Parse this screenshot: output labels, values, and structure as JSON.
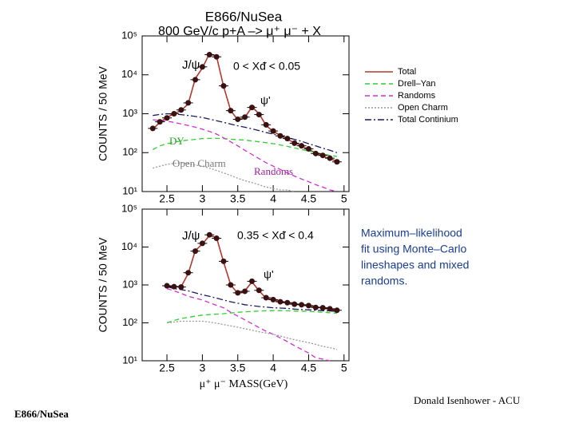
{
  "slide": {
    "author": "Donald Isenhower - ACU",
    "footer": "E866/NuSea",
    "note": [
      "Maximum–likelihood",
      "fit using Monte–Carlo",
      " lineshapes and mixed",
      "randoms."
    ]
  },
  "chart_data": [
    {
      "type": "line",
      "title": "E866/NuSea",
      "subtitle": "800 GeV/c p+A –> μ⁺ μ⁻ + X",
      "y_label": "COUNTS / 50 MeV",
      "log_y": true,
      "legend": "right",
      "annotations": [
        "J/ψ",
        "0 < Xᵭ < 0.05",
        "ψ'",
        "DY",
        "Open Charm",
        "Randoms"
      ],
      "xlim": [
        2.15,
        5.07
      ],
      "ylim": [
        10,
        100000
      ],
      "xticks": [
        2.5,
        3,
        3.5,
        4,
        4.5,
        5
      ],
      "yticks": [
        {
          "value": 10,
          "label": "10¹"
        },
        {
          "value": 100,
          "label": "10²"
        },
        {
          "value": 1000,
          "label": "10³"
        },
        {
          "value": 10000,
          "label": "10⁴"
        },
        {
          "value": 100000,
          "label": "10⁵"
        }
      ],
      "x": [
        2.3,
        2.4,
        2.5,
        2.6,
        2.7,
        2.8,
        2.9,
        3.0,
        3.1,
        3.2,
        3.3,
        3.4,
        3.5,
        3.6,
        3.7,
        3.8,
        3.9,
        4.0,
        4.1,
        4.2,
        4.3,
        4.4,
        4.5,
        4.6,
        4.7,
        4.8,
        4.9
      ],
      "data_points": [
        420,
        620,
        780,
        1000,
        1250,
        1900,
        7500,
        16000,
        33000,
        29000,
        5200,
        1200,
        720,
        820,
        1450,
        950,
        520,
        360,
        270,
        230,
        175,
        150,
        125,
        95,
        85,
        72,
        58
      ],
      "series": [
        {
          "name": "Total",
          "color": "#b03a2e",
          "dash": "",
          "values": [
            400,
            600,
            800,
            1000,
            1200,
            1800,
            8000,
            15000,
            35000,
            30000,
            5000,
            1200,
            700,
            800,
            1500,
            1000,
            500,
            350,
            280,
            220,
            180,
            150,
            120,
            100,
            80,
            70,
            60
          ]
        },
        {
          "name": "Drell–Yan",
          "color": "#33cc33",
          "dash": "6 4",
          "values": [
            120,
            150,
            170,
            185,
            200,
            210,
            220,
            230,
            232,
            232,
            230,
            222,
            215,
            210,
            200,
            190,
            180,
            170,
            158,
            145,
            132,
            120,
            110,
            100,
            92,
            85,
            80
          ]
        },
        {
          "name": "Randoms",
          "color": "#cc33cc",
          "dash": "6 4",
          "values": [
            700,
            670,
            640,
            600,
            550,
            500,
            450,
            400,
            350,
            300,
            240,
            190,
            150,
            115,
            90,
            70,
            55,
            45,
            37,
            30,
            25,
            21,
            18,
            15,
            13,
            11,
            10
          ]
        },
        {
          "name": "Open Charm",
          "color": "#999999",
          "dash": "2 2",
          "values": [
            40,
            45,
            50,
            53,
            55,
            52,
            48,
            45,
            40,
            35,
            30,
            26,
            22,
            19,
            17,
            15,
            13,
            12,
            11,
            11,
            10,
            null,
            null,
            null,
            null,
            null,
            null
          ]
        },
        {
          "name": "Total Continium",
          "color": "#1a1a5e",
          "dash": "8 3 2 3",
          "values": [
            900,
            960,
            1000,
            980,
            950,
            900,
            850,
            800,
            730,
            660,
            600,
            540,
            490,
            450,
            410,
            370,
            330,
            300,
            270,
            245,
            220,
            195,
            170,
            150,
            130,
            115,
            100
          ]
        }
      ]
    },
    {
      "type": "line",
      "y_label": "COUNTS / 50 MeV",
      "x_label": "μ⁺ μ⁻ MASS(GeV)",
      "log_y": true,
      "annotations": [
        "J/ψ",
        "0.35 < Xᵭ < 0.4",
        "ψ'"
      ],
      "xlim": [
        2.15,
        5.07
      ],
      "ylim": [
        10,
        100000
      ],
      "xticks": [
        2.5,
        3,
        3.5,
        4,
        4.5,
        5
      ],
      "yticks": [
        {
          "value": 10,
          "label": "10¹"
        },
        {
          "value": 100,
          "label": "10²"
        },
        {
          "value": 1000,
          "label": "10³"
        },
        {
          "value": 10000,
          "label": "10⁴"
        },
        {
          "value": 100000,
          "label": "10⁵"
        }
      ],
      "x": [
        2.5,
        2.6,
        2.7,
        2.8,
        2.9,
        3.0,
        3.1,
        3.2,
        3.3,
        3.4,
        3.5,
        3.6,
        3.7,
        3.8,
        3.9,
        4.0,
        4.1,
        4.2,
        4.3,
        4.4,
        4.5,
        4.6,
        4.7,
        4.8,
        4.9
      ],
      "data_points": [
        950,
        900,
        880,
        2100,
        7800,
        12500,
        21000,
        17000,
        4200,
        1000,
        620,
        680,
        1250,
        720,
        460,
        410,
        360,
        340,
        310,
        300,
        285,
        255,
        250,
        235,
        215
      ],
      "series": [
        {
          "color": "#b03a2e",
          "dash": "",
          "values": [
            900,
            900,
            900,
            2000,
            8000,
            12000,
            20000,
            18000,
            4000,
            1000,
            600,
            700,
            1200,
            700,
            450,
            400,
            370,
            340,
            320,
            300,
            280,
            260,
            250,
            230,
            220
          ]
        },
        {
          "color": "#33cc33",
          "dash": "6 4",
          "values": [
            100,
            115,
            130,
            140,
            150,
            160,
            165,
            170,
            175,
            182,
            190,
            195,
            200,
            205,
            208,
            210,
            210,
            208,
            205,
            203,
            200,
            195,
            190,
            185,
            180
          ]
        },
        {
          "color": "#cc33cc",
          "dash": "6 4",
          "values": [
            800,
            700,
            600,
            500,
            450,
            400,
            340,
            290,
            250,
            190,
            150,
            120,
            95,
            75,
            60,
            50,
            40,
            32,
            25,
            20,
            16,
            12,
            11,
            10,
            null
          ]
        },
        {
          "color": "#999999",
          "dash": "2 2",
          "values": [
            100,
            105,
            110,
            110,
            110,
            110,
            105,
            98,
            90,
            83,
            77,
            70,
            64,
            58,
            54,
            50,
            45,
            40,
            36,
            33,
            30,
            27,
            24,
            22,
            20
          ]
        },
        {
          "color": "#1a1a5e",
          "dash": "8 3 2 3",
          "values": [
            900,
            800,
            750,
            700,
            620,
            550,
            500,
            450,
            400,
            360,
            330,
            300,
            285,
            270,
            260,
            250,
            245,
            240,
            230,
            225,
            220,
            215,
            210,
            205,
            200
          ]
        }
      ]
    }
  ]
}
